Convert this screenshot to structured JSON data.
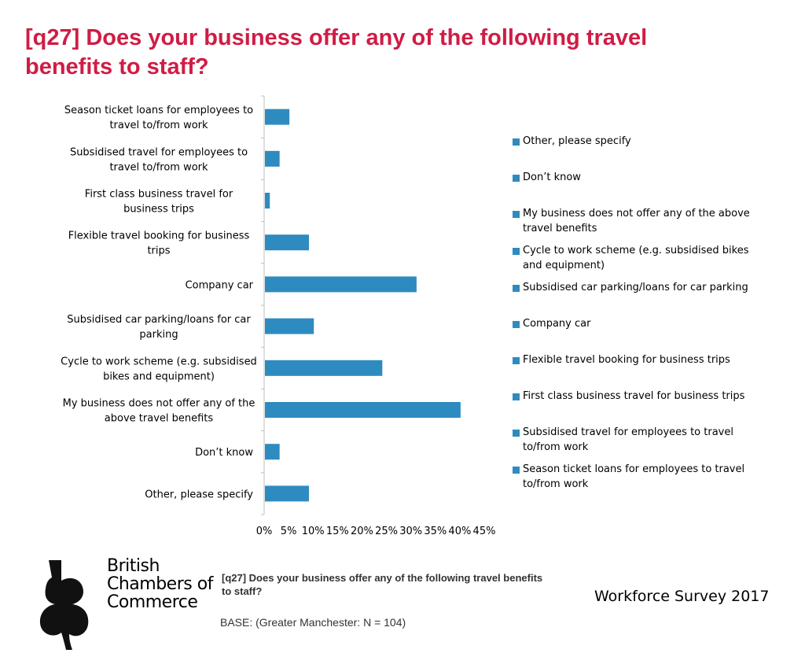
{
  "header": {
    "title": "[q27] Does your business offer any of the following travel benefits to staff?"
  },
  "colors": {
    "title": "#d01c45",
    "bar": "#2e8bc0",
    "axis": "#bfbfbf"
  },
  "chart_data": {
    "type": "bar",
    "orientation": "horizontal",
    "categories": [
      "Season ticket loans for employees to travel to/from work",
      "Subsidised travel for employees to travel to/from work",
      "First class business travel for business trips",
      "Flexible travel booking for business trips",
      "Company car",
      "Subsidised car parking/loans for car parking",
      "Cycle to work scheme (e.g. subsidised bikes and equipment)",
      "My business does not offer any of the above travel benefits",
      "Don’t know",
      "Other, please specify"
    ],
    "values": [
      5,
      3,
      1,
      9,
      31,
      10,
      24,
      40,
      3,
      9
    ],
    "xlim": [
      0,
      45
    ],
    "xticks": [
      "0%",
      "5%",
      "10%",
      "15%",
      "20%",
      "25%",
      "30%",
      "35%",
      "40%",
      "45%"
    ],
    "grid": false,
    "legend_position": "right",
    "legend": [
      "Other, please specify",
      "Don’t know",
      "My business does not offer any of the above travel benefits",
      "Cycle to work scheme (e.g. subsidised bikes and equipment)",
      "Subsidised car parking/loans for car parking",
      "Company car",
      "Flexible travel booking for business trips",
      "First class business travel for business trips",
      "Subsidised travel for employees to travel to/from work",
      "Season ticket loans for employees to travel to/from work"
    ]
  },
  "logo": {
    "line1": "British",
    "line2": "Chambers of",
    "line3": "Commerce"
  },
  "footer": {
    "question": "[q27] Does your business offer any of the following travel benefits to staff?",
    "base": "BASE: (Greater Manchester: N = 104)",
    "survey": "Workforce Survey 2017"
  }
}
